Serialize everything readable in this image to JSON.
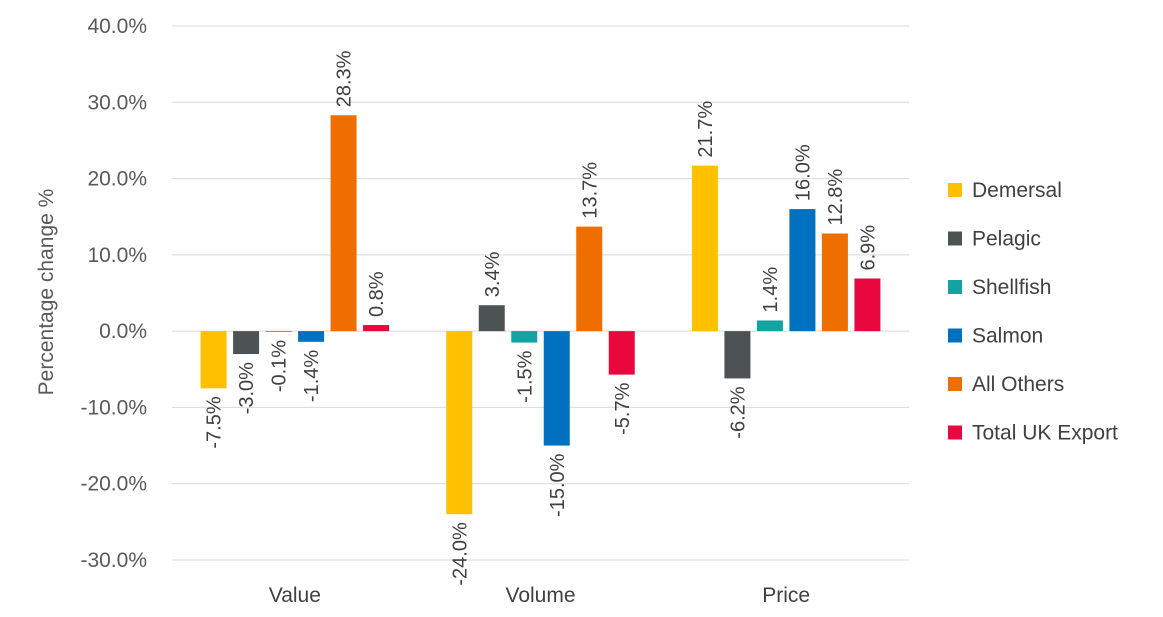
{
  "chart_data": {
    "type": "bar",
    "ylabel": "Percentage change %",
    "ylim": [
      -30,
      40
    ],
    "ytick_step": 10,
    "tick_format": "percent_1dp",
    "categories": [
      "Value",
      "Volume",
      "Price"
    ],
    "series": [
      {
        "name": "Demersal",
        "color": "#FFC000",
        "values": [
          -7.5,
          -24.0,
          21.7
        ],
        "labels": [
          "-7.5%",
          "-24.0%",
          "21.7%"
        ]
      },
      {
        "name": "Pelagic",
        "color": "#4D5254",
        "values": [
          -3.0,
          3.4,
          -6.2
        ],
        "labels": [
          "-3.0%",
          "3.4%",
          "-6.2%"
        ]
      },
      {
        "name": "Shellfish",
        "color": "#13A3A3",
        "values": [
          -0.1,
          -1.5,
          1.4
        ],
        "labels": [
          "-0.1%",
          "-1.5%",
          "1.4%"
        ]
      },
      {
        "name": "Salmon",
        "color": "#0070C0",
        "values": [
          -1.4,
          -15.0,
          16.0
        ],
        "labels": [
          "-1.4%",
          "-15.0%",
          "16.0%"
        ]
      },
      {
        "name": "All Others",
        "color": "#EE6F00",
        "values": [
          28.3,
          13.7,
          12.8
        ],
        "labels": [
          "28.3%",
          "13.7%",
          "12.8%"
        ]
      },
      {
        "name": "Total UK Export",
        "color": "#E8083E",
        "values": [
          0.8,
          -5.7,
          6.9
        ],
        "labels": [
          "0.8%",
          "-5.7%",
          "6.9%"
        ]
      }
    ],
    "legend_position": "right",
    "grid": true
  }
}
